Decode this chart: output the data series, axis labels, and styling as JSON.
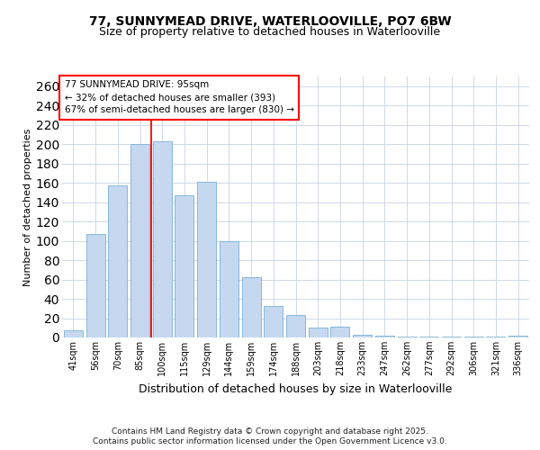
{
  "title1": "77, SUNNYMEAD DRIVE, WATERLOOVILLE, PO7 6BW",
  "title2": "Size of property relative to detached houses in Waterlooville",
  "xlabel": "Distribution of detached houses by size in Waterlooville",
  "ylabel": "Number of detached properties",
  "categories": [
    "41sqm",
    "56sqm",
    "70sqm",
    "85sqm",
    "100sqm",
    "115sqm",
    "129sqm",
    "144sqm",
    "159sqm",
    "174sqm",
    "188sqm",
    "203sqm",
    "218sqm",
    "233sqm",
    "247sqm",
    "262sqm",
    "277sqm",
    "292sqm",
    "306sqm",
    "321sqm",
    "336sqm"
  ],
  "values": [
    7,
    107,
    157,
    200,
    203,
    147,
    161,
    100,
    62,
    33,
    23,
    10,
    11,
    3,
    2,
    1,
    1,
    1,
    1,
    1,
    2
  ],
  "bar_color": "#c5d8f0",
  "bar_edge_color": "#7bafd4",
  "ylim": [
    0,
    270
  ],
  "yticks": [
    0,
    20,
    40,
    60,
    80,
    100,
    120,
    140,
    160,
    180,
    200,
    220,
    240,
    260
  ],
  "red_line_x": 3.5,
  "annotation_title": "77 SUNNYMEAD DRIVE: 95sqm",
  "annotation_line1": "← 32% of detached houses are smaller (393)",
  "annotation_line2": "67% of semi-detached houses are larger (830) →",
  "footnote1": "Contains HM Land Registry data © Crown copyright and database right 2025.",
  "footnote2": "Contains public sector information licensed under the Open Government Licence v3.0.",
  "background_color": "#ffffff",
  "plot_bg_color": "#ffffff",
  "grid_color": "#d0d8e8",
  "title_fontsize": 10,
  "subtitle_fontsize": 9,
  "annotation_fontsize": 7.5,
  "ylabel_fontsize": 8,
  "xlabel_fontsize": 9,
  "tick_fontsize": 7,
  "footnote_fontsize": 6.5
}
